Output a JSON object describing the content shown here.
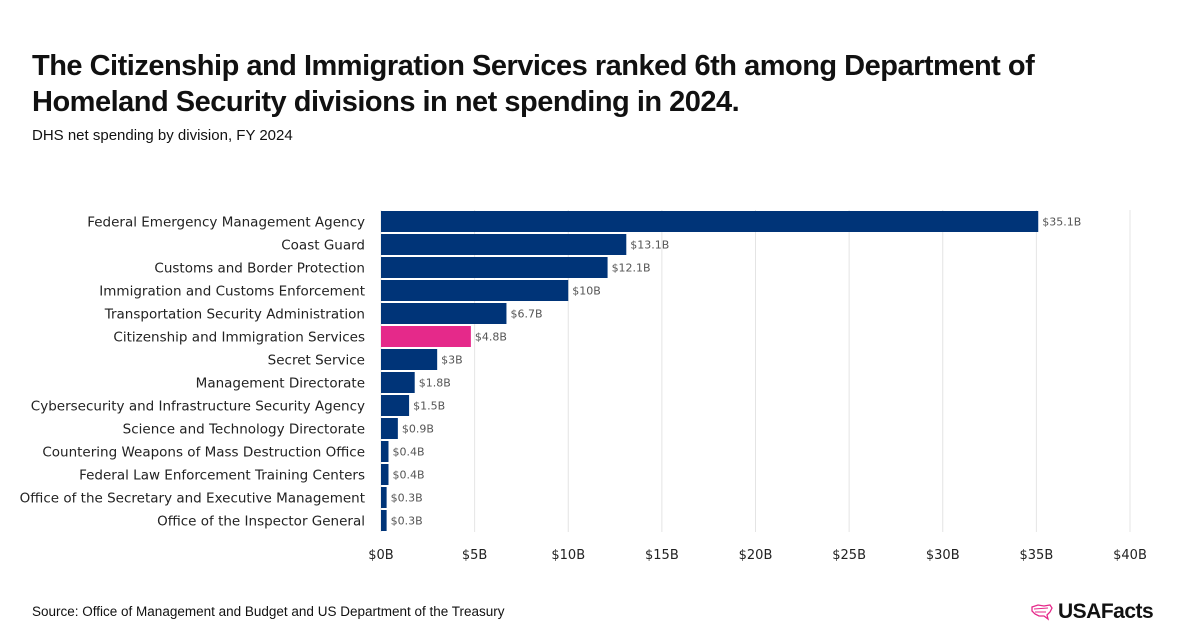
{
  "title": "The Citizenship and Immigration Services ranked 6th among Department of Homeland Security divisions in net spending in 2024.",
  "subtitle": "DHS net spending by division, FY 2024",
  "source": "Source: Office of Management and Budget and US Department of the Treasury",
  "logo": "USAFacts",
  "colors": {
    "bar": "#003478",
    "highlight": "#E5298A",
    "grid": "#e4e4e4",
    "label": "#555555"
  },
  "chart_data": {
    "type": "bar",
    "orientation": "horizontal",
    "categories": [
      "Federal Emergency Management Agency",
      "Coast Guard",
      "Customs and Border Protection",
      "Immigration and Customs Enforcement",
      "Transportation Security Administration",
      "Citizenship and Immigration Services",
      "Secret Service",
      "Management Directorate",
      "Cybersecurity and Infrastructure Security Agency",
      "Science and Technology Directorate",
      "Countering Weapons of Mass Destruction Office",
      "Federal Law Enforcement Training Centers",
      "Office of the Secretary and Executive Management",
      "Office of the Inspector General"
    ],
    "values": [
      35.1,
      13.1,
      12.1,
      10,
      6.7,
      4.8,
      3,
      1.8,
      1.5,
      0.9,
      0.4,
      0.4,
      0.3,
      0.3
    ],
    "data_labels": [
      "$35.1B",
      "$13.1B",
      "$12.1B",
      "$10B",
      "$6.7B",
      "$4.8B",
      "$3B",
      "$1.8B",
      "$1.5B",
      "$0.9B",
      "$0.4B",
      "$0.4B",
      "$0.3B",
      "$0.3B"
    ],
    "highlight_index": 5,
    "xlim": [
      0,
      40
    ],
    "xticks": [
      0,
      5,
      10,
      15,
      20,
      25,
      30,
      35,
      40
    ],
    "xtick_labels": [
      "$0B",
      "$5B",
      "$10B",
      "$15B",
      "$20B",
      "$25B",
      "$30B",
      "$35B",
      "$40B"
    ],
    "grid": true,
    "xlabel": "",
    "ylabel": ""
  }
}
